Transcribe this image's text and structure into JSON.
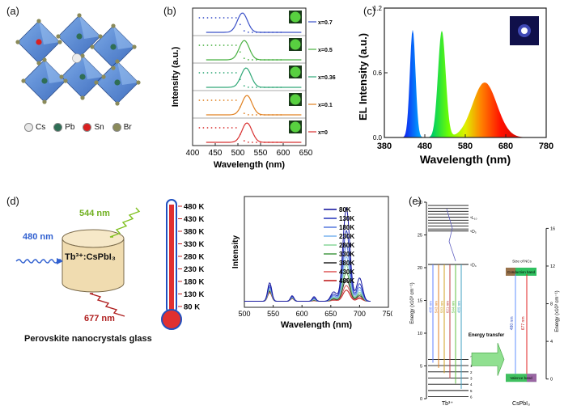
{
  "panels": {
    "a": {
      "label": "(a)",
      "legend": [
        {
          "symbol": "Cs",
          "color": "#e8e8e8"
        },
        {
          "symbol": "Pb",
          "color": "#2f6e55"
        },
        {
          "symbol": "Sn",
          "color": "#d92020"
        },
        {
          "symbol": "Br",
          "color": "#8a8a5a"
        }
      ]
    },
    "b": {
      "label": "(b)"
    },
    "c": {
      "label": "(c)"
    },
    "d": {
      "label": "(d)",
      "excitation": "480 nm",
      "emission_green": "544 nm",
      "emission_red": "677 nm",
      "sample": "Tb³⁺:CsPbI₃",
      "caption": "Perovskite nanocrystals glass",
      "thermometer_ticks": [
        "480 K",
        "430 K",
        "380 K",
        "330 K",
        "280 K",
        "230 K",
        "180 K",
        "130 K",
        "80 K"
      ]
    },
    "e": {
      "label": "(e)",
      "tb_levels": [
        "⁵L₁₀",
        "⁵D₃",
        "⁵D₄",
        "⁷F₀",
        "1",
        "2",
        "3",
        "4",
        "5",
        "6"
      ],
      "transitions": [
        "488 nm",
        "543 nm",
        "583 nm",
        "621 nm",
        "544 nm",
        "489 nm"
      ],
      "nc_labels": {
        "size": "Size of NCs",
        "cb": "Conduction band",
        "vb": "Valence band"
      },
      "nc_transitions": [
        "480 nm",
        "677 nm"
      ],
      "energy_transfer": "Energy transfer",
      "left_axis_label": "Energy (x10³ cm⁻¹)",
      "right_axis_label": "Energy (x10³ cm⁻¹)",
      "left_ticks": [
        "0",
        "5",
        "10",
        "15",
        "20",
        "25",
        "30"
      ],
      "right_ticks": [
        "0",
        "4",
        "8",
        "12",
        "16"
      ],
      "bottom_left": "Tb³⁺",
      "bottom_right": "CsPbI₃"
    }
  },
  "chart_data": [
    {
      "panel": "b",
      "type": "line",
      "xlabel": "Wavelength (nm)",
      "ylabel": "Intensity (a.u.)",
      "xlim": [
        400,
        650
      ],
      "xticks": [
        "400",
        "450",
        "500",
        "550",
        "600",
        "650"
      ],
      "series": [
        {
          "name": "x=0.7",
          "color": "#3a50c8",
          "peak": 510
        },
        {
          "name": "x=0.5",
          "color": "#48b040",
          "peak": 514
        },
        {
          "name": "x=0.36",
          "color": "#30a878",
          "peak": 518
        },
        {
          "name": "x=0.1",
          "color": "#e08020",
          "peak": 520
        },
        {
          "name": "x=0",
          "color": "#d83030",
          "peak": 520
        }
      ]
    },
    {
      "panel": "c",
      "type": "area",
      "xlabel": "Wavelength (nm)",
      "ylabel": "EL Intensity (a.u.)",
      "xlim": [
        380,
        780
      ],
      "ylim": [
        0,
        1.2
      ],
      "xticks": [
        "380",
        "480",
        "580",
        "680",
        "780"
      ],
      "yticks": [
        "0.0",
        "0.6",
        "1.2"
      ],
      "peaks": [
        {
          "center": 450,
          "height": 1.0
        },
        {
          "center": 522,
          "height": 0.99
        },
        {
          "center": 628,
          "height": 0.51
        }
      ]
    },
    {
      "panel": "d",
      "type": "line",
      "xlabel": "Wavelength (nm)",
      "ylabel": "Intensity",
      "xlim": [
        500,
        750
      ],
      "xticks": [
        "500",
        "550",
        "600",
        "650",
        "700",
        "750"
      ],
      "series": [
        {
          "name": "80K",
          "color": "#1a1aa0",
          "scale": 1.0
        },
        {
          "name": "130K",
          "color": "#3040c0",
          "scale": 0.76
        },
        {
          "name": "180K",
          "color": "#6080e0",
          "scale": 0.6
        },
        {
          "name": "230K",
          "color": "#80b8f0",
          "scale": 0.48
        },
        {
          "name": "280K",
          "color": "#90d8a0",
          "scale": 0.39
        },
        {
          "name": "330K",
          "color": "#50a050",
          "scale": 0.31
        },
        {
          "name": "380K",
          "color": "#303030",
          "scale": 0.24
        },
        {
          "name": "430K",
          "color": "#e06060",
          "scale": 0.17
        },
        {
          "name": "480K",
          "color": "#c02020",
          "scale": 0.12
        }
      ]
    }
  ]
}
